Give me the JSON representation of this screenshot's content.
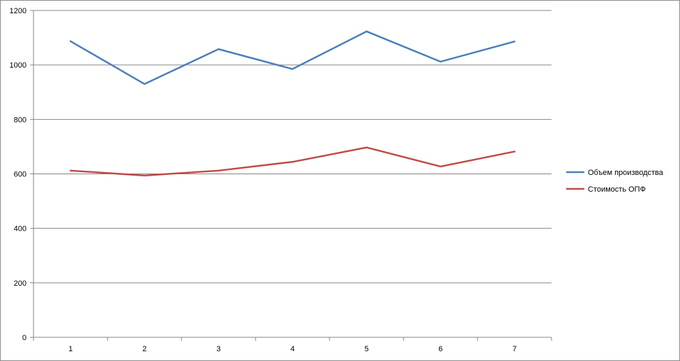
{
  "chart_data": {
    "type": "line",
    "title": "",
    "xlabel": "",
    "ylabel": "",
    "categories": [
      "1",
      "2",
      "3",
      "4",
      "5",
      "6",
      "7"
    ],
    "y_ticks": [
      "0",
      "200",
      "400",
      "600",
      "800",
      "1000",
      "1200"
    ],
    "ylim": [
      0,
      1200
    ],
    "grid": true,
    "legend_position": "right",
    "series": [
      {
        "name": "Объем производства",
        "color": "#4A7EBB",
        "values": [
          1087,
          930,
          1058,
          985,
          1123,
          1012,
          1086
        ]
      },
      {
        "name": "Стоимость ОПФ",
        "color": "#BE4B48",
        "values": [
          612,
          594,
          612,
          644,
          697,
          627,
          682
        ]
      }
    ]
  }
}
